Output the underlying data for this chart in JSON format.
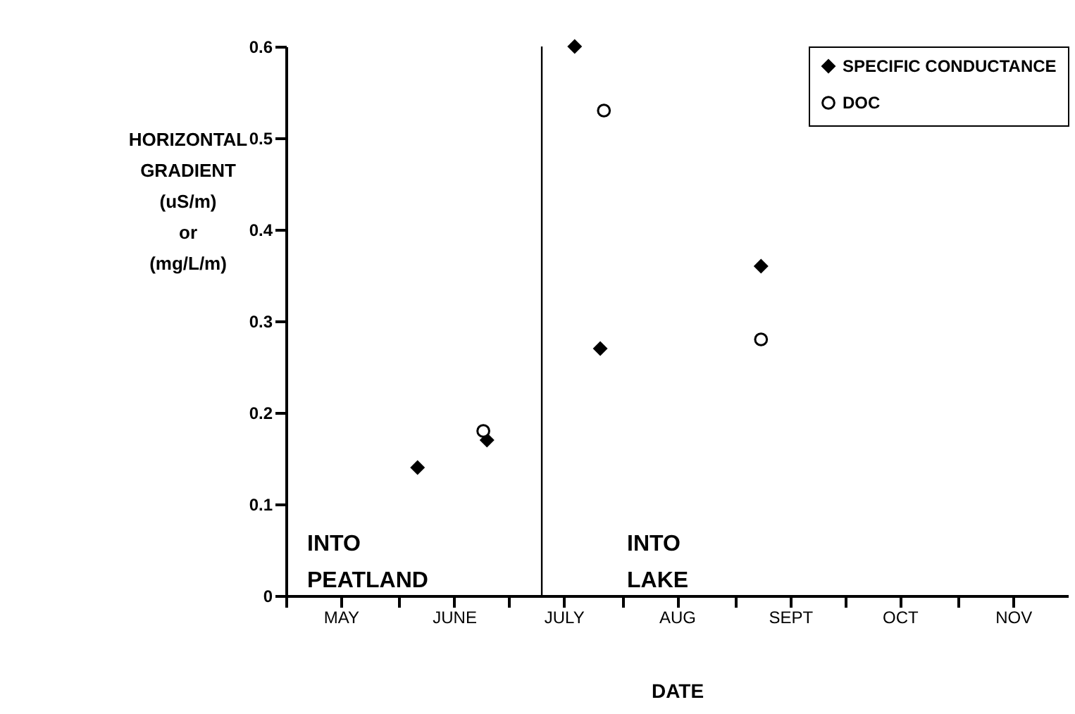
{
  "chart_data": {
    "type": "scatter",
    "xlabel": "DATE",
    "ylabel": "HORIZONTAL\nGRADIENT\n\n(uS/m)\nor\n(mg/L/m)",
    "series": [
      {
        "name": "SPECIFIC CONDUCTANCE",
        "color": "#000000",
        "marker": "diamond",
        "x": [
          "--06-06",
          "--06-25",
          "--07-19",
          "--07-26",
          "--09-08"
        ],
        "values": [
          0.14,
          0.17,
          0.6,
          0.27,
          0.36
        ]
      },
      {
        "name": "DOC",
        "color": "#000000",
        "marker": "circle",
        "x": [
          "--06-24",
          "--07-27",
          "--09-08"
        ],
        "values": [
          0.18,
          0.53,
          0.28
        ]
      }
    ],
    "xlim": [
      "--05-01",
      "--12-01"
    ],
    "xticks": [
      {
        "value": "--05-01",
        "label": null
      },
      {
        "value": "--05-16",
        "label": "MAY"
      },
      {
        "value": "--06-01",
        "label": null
      },
      {
        "value": "--06-16",
        "label": "JUNE"
      },
      {
        "value": "--07-01",
        "label": null
      },
      {
        "value": "--07-16",
        "label": "JULY"
      },
      {
        "value": "--08-01",
        "label": null
      },
      {
        "value": "--08-16",
        "label": "AUG"
      },
      {
        "value": "--09-01",
        "label": null
      },
      {
        "value": "--09-16",
        "label": "SEPT"
      },
      {
        "value": "--10-01",
        "label": null
      },
      {
        "value": "--10-16",
        "label": "OCT"
      },
      {
        "value": "--11-01",
        "label": null
      },
      {
        "value": "--11-16",
        "label": "NOV"
      }
    ],
    "ylim": [
      0,
      0.6
    ],
    "yticks": [
      0,
      0.1,
      0.2,
      0.3,
      0.4,
      0.5,
      0.6
    ],
    "ref_lines": [
      {
        "axis": "x",
        "value": "--07-10",
        "label": null
      }
    ],
    "annotations": [
      "INTO PEATLAND",
      "INTO LAKE"
    ],
    "legend": "top right",
    "grid": false
  }
}
